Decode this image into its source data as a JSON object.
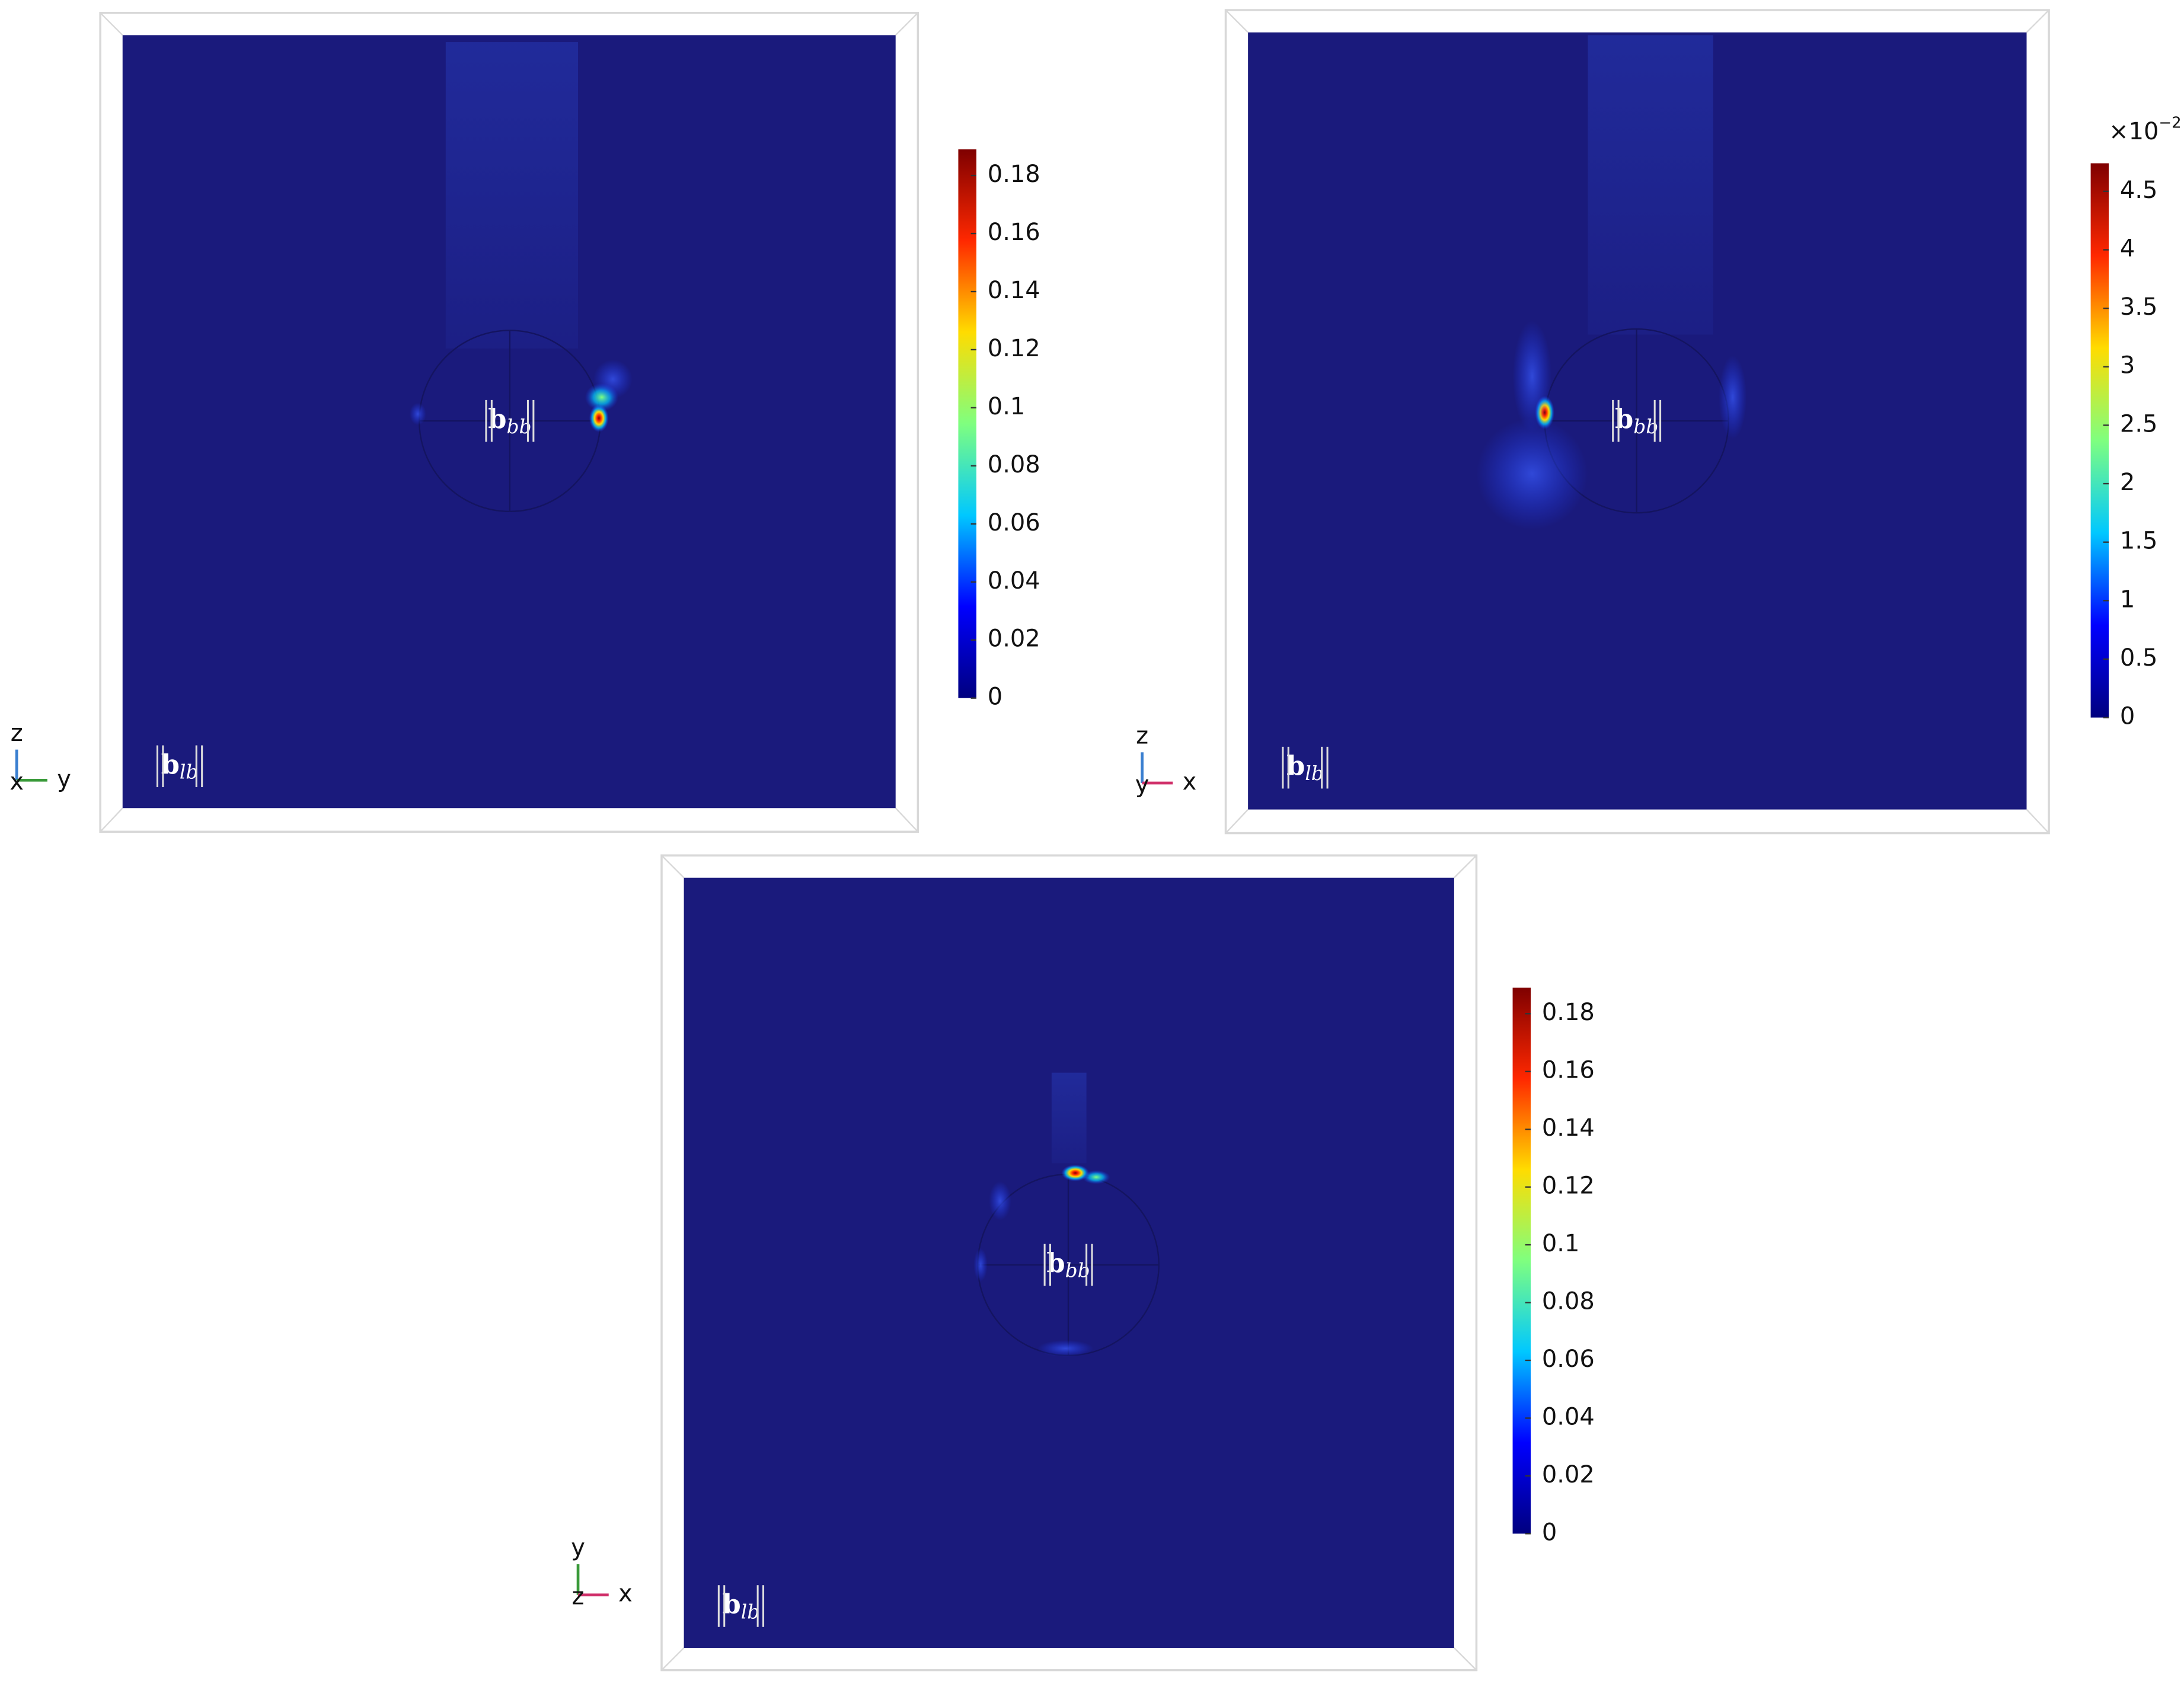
{
  "chart_data": [
    {
      "type": "field",
      "field_label": {
        "symbol": "b",
        "subscript": "bb"
      },
      "view_label": {
        "symbol": "b",
        "subscript": "lb"
      },
      "triad": {
        "up": "z",
        "right": "y",
        "out": "x"
      },
      "clim": [
        0,
        0.189
      ],
      "cticks": [
        0,
        0.02,
        0.04,
        0.06,
        0.08,
        0.1,
        0.12,
        0.14,
        0.16,
        0.18
      ],
      "colormap": [
        "#00007f",
        "#0000ff",
        "#00c8ff",
        "#7fff7f",
        "#ffdc00",
        "#ff2800",
        "#7f0000"
      ],
      "background": "#1a1a7c"
    },
    {
      "type": "field",
      "field_label": {
        "symbol": "b",
        "subscript": "bb"
      },
      "view_label": {
        "symbol": "b",
        "subscript": "lb"
      },
      "triad": {
        "up": "z",
        "right": "x",
        "out": "y"
      },
      "clim": [
        0,
        4.74
      ],
      "cticks": [
        0,
        0.5,
        1,
        1.5,
        2,
        2.5,
        3,
        3.5,
        4,
        4.5
      ],
      "scale_label": {
        "base": "×10",
        "exponent": "−2"
      },
      "colormap": [
        "#00007f",
        "#0000ff",
        "#00c8ff",
        "#7fff7f",
        "#ffdc00",
        "#ff2800",
        "#7f0000"
      ],
      "background": "#1a1a7c"
    },
    {
      "type": "field",
      "field_label": {
        "symbol": "b",
        "subscript": "bb"
      },
      "view_label": {
        "symbol": "b",
        "subscript": "lb"
      },
      "triad": {
        "up": "y",
        "right": "x",
        "out": "z"
      },
      "clim": [
        0,
        0.189
      ],
      "cticks": [
        0,
        0.02,
        0.04,
        0.06,
        0.08,
        0.1,
        0.12,
        0.14,
        0.16,
        0.18
      ],
      "colormap": [
        "#00007f",
        "#0000ff",
        "#00c8ff",
        "#7fff7f",
        "#ffdc00",
        "#ff2800",
        "#7f0000"
      ],
      "background": "#1a1a7c"
    }
  ]
}
